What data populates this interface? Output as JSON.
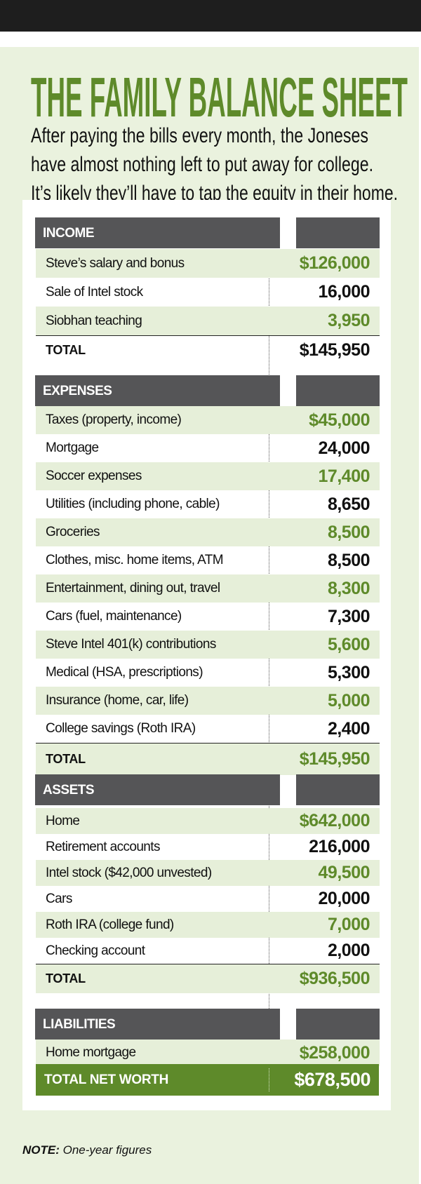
{
  "title": "THE FAMILY BALANCE SHEET",
  "subtitle": [
    "After paying the bills every month, the Joneses",
    "have almost nothing left to put away for college.",
    "It’s likely they’ll have to tap the equity in their home."
  ],
  "colors": {
    "accent": "#5e8a2a",
    "header": "#555557",
    "panel": "#eaf2de"
  },
  "sections": [
    {
      "header": "INCOME",
      "rows": [
        {
          "label": "Steve’s salary and bonus",
          "value": "$126,000"
        },
        {
          "label": "Sale of Intel stock",
          "value": "16,000"
        },
        {
          "label": "Siobhan teaching",
          "value": "3,950"
        }
      ],
      "total_label": "TOTAL",
      "total": "$145,950"
    },
    {
      "header": "EXPENSES",
      "rows": [
        {
          "label": "Taxes (property, income)",
          "value": "$45,000"
        },
        {
          "label": "Mortgage",
          "value": "24,000"
        },
        {
          "label": "Soccer expenses",
          "value": "17,400"
        },
        {
          "label": "Utilities (including phone, cable)",
          "value": "8,650"
        },
        {
          "label": "Groceries",
          "value": "8,500"
        },
        {
          "label": "Clothes, misc. home items, ATM",
          "value": "8,500"
        },
        {
          "label": "Entertainment, dining out, travel",
          "value": "8,300"
        },
        {
          "label": "Cars (fuel, maintenance)",
          "value": "7,300"
        },
        {
          "label": "Steve Intel 401(k) contributions",
          "value": "5,600"
        },
        {
          "label": "Medical (HSA, prescriptions)",
          "value": "5,300"
        },
        {
          "label": "Insurance (home, car, life)",
          "value": "5,000"
        },
        {
          "label": "College savings (Roth IRA)",
          "value": "2,400"
        }
      ],
      "total_label": "TOTAL",
      "total": "$145,950"
    },
    {
      "header": "ASSETS",
      "rows": [
        {
          "label": "Home",
          "value": "$642,000"
        },
        {
          "label": "Retirement accounts",
          "value": "216,000"
        },
        {
          "label": "Intel stock ($42,000 unvested)",
          "value": "49,500"
        },
        {
          "label": "Cars",
          "value": "20,000"
        },
        {
          "label": "Roth IRA (college fund)",
          "value": "7,000"
        },
        {
          "label": "Checking account",
          "value": "2,000"
        }
      ],
      "total_label": "TOTAL",
      "total": "$936,500"
    },
    {
      "header": "LIABILITIES",
      "rows": [
        {
          "label": "Home mortgage",
          "value": "$258,000"
        }
      ]
    }
  ],
  "net_worth": {
    "label": "TOTAL NET WORTH",
    "value": "$678,500"
  },
  "note": {
    "label": "NOTE:",
    "text": "One-year figures"
  }
}
